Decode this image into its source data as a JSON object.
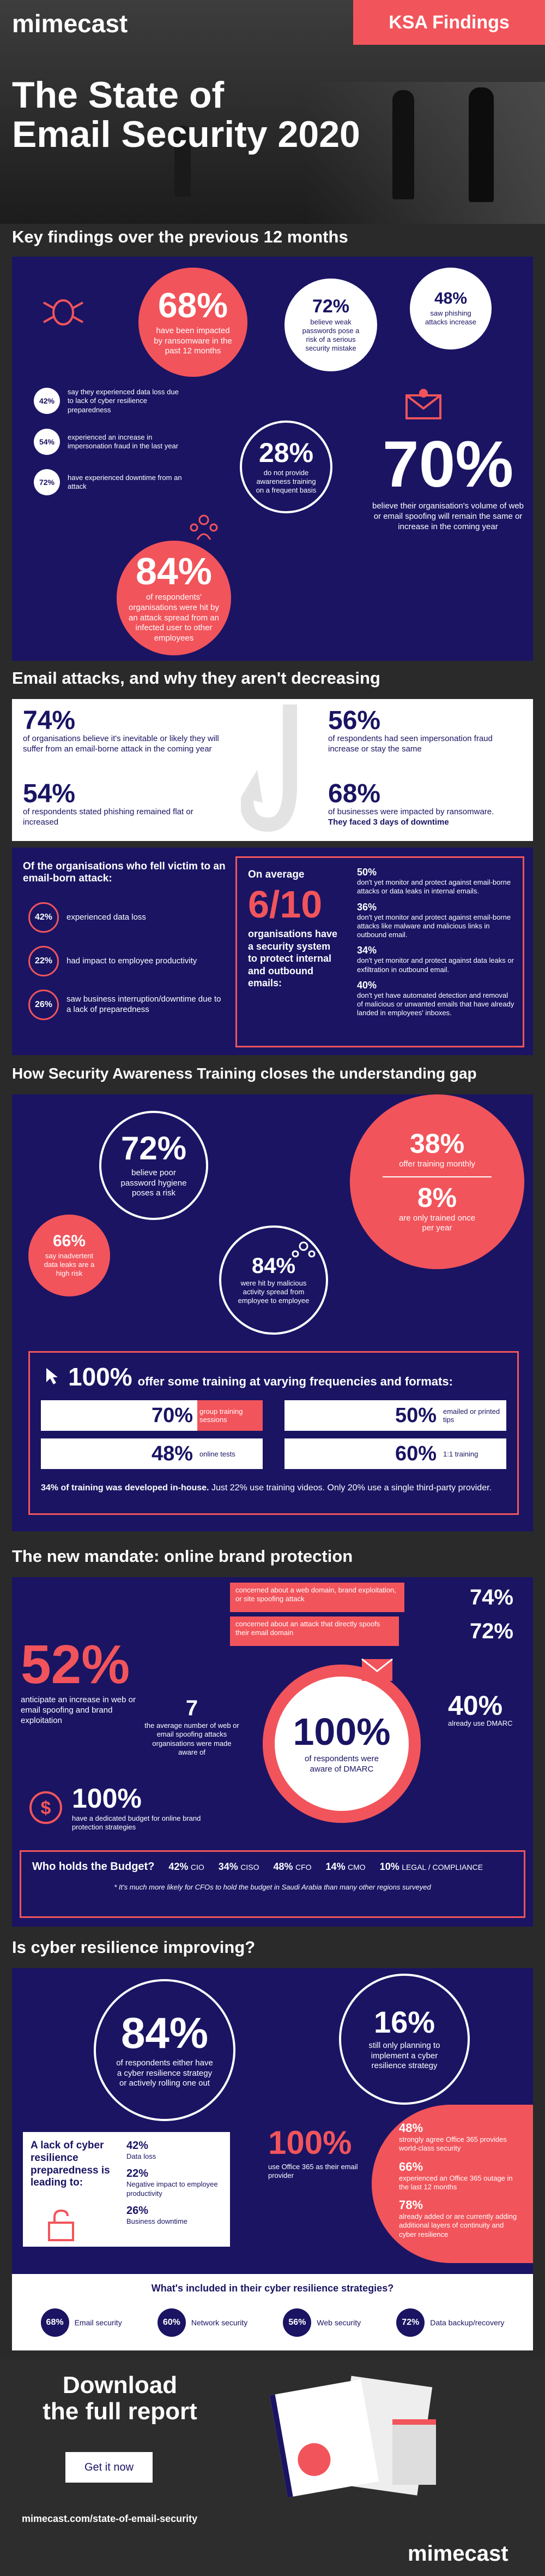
{
  "header": {
    "logo": "mimecast",
    "badge": "KSA Findings",
    "title_line1": "The State of",
    "title_line2": "Email Security 2020"
  },
  "s1": {
    "title": "Key findings over the previous 12 months",
    "c68": {
      "value": "68%",
      "text": "have been impacted by ransomware in the past 12 months"
    },
    "c72": {
      "value": "72%",
      "text": "believe weak passwords pose a risk of a serious security mistake"
    },
    "c48": {
      "value": "48%",
      "text": "saw phishing attacks increase"
    },
    "c28": {
      "value": "28%",
      "text": "do not provide awareness training on a frequent basis"
    },
    "c70": {
      "value": "70%",
      "text": "believe their organisation's volume of web or email spoofing will remain the same or increase in the coming year"
    },
    "c84": {
      "value": "84%",
      "text": "of respondents' organisations were hit by an attack spread from an infected user to other employees"
    },
    "side": [
      {
        "v": "42%",
        "t": "say they experienced data loss due to lack of cyber resilience preparedness"
      },
      {
        "v": "54%",
        "t": "experienced an increase in impersonation fraud in the last year"
      },
      {
        "v": "72%",
        "t": "have experienced downtime from an attack"
      }
    ]
  },
  "s2": {
    "title": "Email attacks, and why they aren't decreasing",
    "stats": [
      {
        "v": "74%",
        "t": "of organisations believe it's inevitable or likely they will suffer from an email-borne attack in the coming year"
      },
      {
        "v": "54%",
        "t": "of respondents stated phishing remained flat or increased"
      },
      {
        "v": "56%",
        "t": "of respondents had seen impersonation fraud increase or stay the same"
      },
      {
        "v": "68%",
        "t": "of businesses were impacted by ransomware.",
        "t2": "They faced 3 days of downtime"
      }
    ],
    "victims_title": "Of the organisations who fell victim to an email-born attack:",
    "victims": [
      {
        "v": "42%",
        "t": "experienced data loss"
      },
      {
        "v": "22%",
        "t": "had impact to employee productivity"
      },
      {
        "v": "26%",
        "t": "saw business interruption/downtime due to a lack of preparedness"
      }
    ],
    "avg_label": "On average",
    "avg_value": "6/10",
    "avg_text": "organisations have a security system to protect internal and outbound emails:",
    "right": [
      {
        "v": "50%",
        "t": "don't yet monitor and protect against email-borne attacks or data leaks in internal emails."
      },
      {
        "v": "36%",
        "t": "don't yet monitor and protect against email-borne attacks like malware and malicious links in outbound email."
      },
      {
        "v": "34%",
        "t": "don't yet monitor and protect against data leaks or exfiltration in outbound email."
      },
      {
        "v": "40%",
        "t": "don't yet have automated detection and removal of malicious or unwanted emails that have already landed in employees' inboxes."
      }
    ]
  },
  "s3": {
    "title": "How Security Awareness Training closes the understanding gap",
    "c72": {
      "value": "72%",
      "text": "believe poor password hygiene poses a risk"
    },
    "c66": {
      "value": "66%",
      "text": "say inadvertent data leaks are a high risk"
    },
    "c84": {
      "value": "84%",
      "text": "were hit by malicious activity spread from employee to employee"
    },
    "c38": {
      "value": "38%",
      "text": "offer training monthly"
    },
    "c8": {
      "value": "8%",
      "text": "are only trained once per year"
    },
    "training_value": "100%",
    "training_text": "offer some training at varying frequencies and formats:",
    "formats": [
      {
        "v": "70%",
        "t": "group training sessions"
      },
      {
        "v": "50%",
        "t": "emailed or printed tips"
      },
      {
        "v": "48%",
        "t": "online tests"
      },
      {
        "v": "60%",
        "t": "1:1 training"
      }
    ],
    "footer_bold": "34% of training was developed in-house.",
    "footer_rest": " Just 22% use training videos. Only 20% use a single third-party provider."
  },
  "s4": {
    "title": "The new mandate: online brand protection",
    "c52": {
      "value": "52%",
      "text": "anticipate an increase in web or email spoofing and brand exploitation"
    },
    "bars": [
      {
        "t": "concerned about a web domain, brand exploitation, or site spoofing attack",
        "v": "74%"
      },
      {
        "t": "concerned about an attack that directly spoofs their email domain",
        "v": "72%"
      }
    ],
    "n7": {
      "value": "7",
      "text": "the average number of web or email spoofing attacks organisations were made aware of"
    },
    "c100": {
      "value": "100%",
      "text": "of respondents were aware of DMARC"
    },
    "c40": {
      "value": "40%",
      "text": "already use DMARC"
    },
    "budget": {
      "value": "100%",
      "text": "have a dedicated budget for online brand protection strategies"
    },
    "who_title": "Who holds the Budget?",
    "who": [
      {
        "v": "42%",
        "t": "CIO"
      },
      {
        "v": "34%",
        "t": "CISO"
      },
      {
        "v": "48%",
        "t": "CFO"
      },
      {
        "v": "14%",
        "t": "CMO"
      },
      {
        "v": "10%",
        "t": "LEGAL / COMPLIANCE"
      }
    ],
    "who_note": "* It's much more likely for CFOs to hold the budget in Saudi Arabia than many other regions surveyed"
  },
  "s5": {
    "title": "Is cyber resilience improving?",
    "c84": {
      "value": "84%",
      "text": "of respondents either have a cyber resilience strategy or actively rolling one out"
    },
    "c16": {
      "value": "16%",
      "text": "still only planning to implement a cyber resilience strategy"
    },
    "lack_title": "A lack of cyber resilience preparedness is leading to:",
    "lack": [
      {
        "v": "42%",
        "t": "Data loss"
      },
      {
        "v": "22%",
        "t": "Negative impact to employee productivity"
      },
      {
        "v": "26%",
        "t": "Business downtime"
      }
    ],
    "c100": {
      "value": "100%",
      "text": "use Office 365 as their email provider"
    },
    "o365": [
      {
        "v": "48%",
        "t": "strongly agree Office 365 provides world-class security"
      },
      {
        "v": "66%",
        "t": "experienced an Office 365 outage in the last 12 months"
      },
      {
        "v": "78%",
        "t": "already added or are currently adding additional layers of continuity and cyber resilience"
      }
    ],
    "whats_title": "What's included in their cyber resilience strategies?",
    "pills": [
      {
        "v": "68%",
        "t": "Email security"
      },
      {
        "v": "60%",
        "t": "Network security"
      },
      {
        "v": "56%",
        "t": "Web security"
      },
      {
        "v": "72%",
        "t": "Data backup/recovery"
      }
    ]
  },
  "footer": {
    "download1": "Download",
    "download2": "the full report",
    "cta": "Get it now",
    "url": "mimecast.com/state-of-email-security",
    "logo": "mimecast"
  },
  "colors": {
    "navy": "#1a1463",
    "coral": "#f2545b",
    "dark": "#2a2a2a"
  }
}
